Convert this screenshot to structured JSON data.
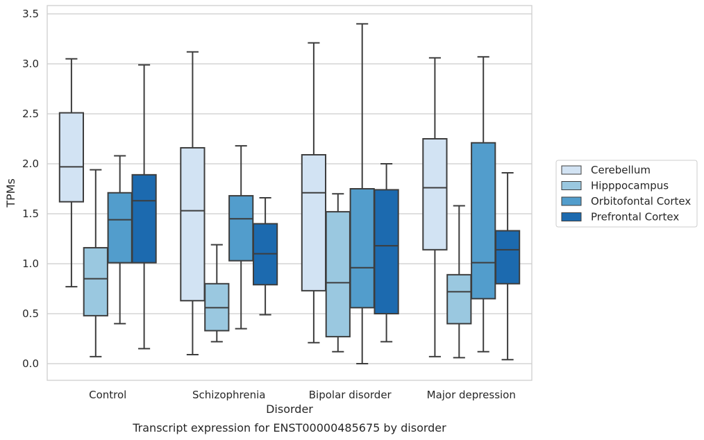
{
  "chart_data": {
    "type": "boxplot",
    "title": "",
    "caption": "Transcript expression for ENST00000485675 by disorder",
    "xlabel": "Disorder",
    "ylabel": "TPMs",
    "ylim": [
      -0.17,
      3.57
    ],
    "yticks": [
      "0.0",
      "0.5",
      "1.0",
      "1.5",
      "2.0",
      "2.5",
      "3.0",
      "3.5"
    ],
    "grid": "horizontal",
    "legend_position": "right",
    "categories": [
      "Control",
      "Schizophrenia",
      "Bipolar disorder",
      "Major depression"
    ],
    "series": [
      {
        "name": "Cerebellum",
        "color": "#d2e3f3",
        "boxes": [
          {
            "whislo": 0.77,
            "q1": 1.62,
            "med": 1.97,
            "q3": 2.51,
            "whishi": 3.05
          },
          {
            "whislo": 0.09,
            "q1": 0.63,
            "med": 1.53,
            "q3": 2.16,
            "whishi": 3.12
          },
          {
            "whislo": 0.21,
            "q1": 0.73,
            "med": 1.71,
            "q3": 2.09,
            "whishi": 3.21
          },
          {
            "whislo": 0.07,
            "q1": 1.14,
            "med": 1.76,
            "q3": 2.25,
            "whishi": 3.06
          }
        ]
      },
      {
        "name": "Hipppocampus",
        "color": "#9ac8e0",
        "boxes": [
          {
            "whislo": 0.07,
            "q1": 0.48,
            "med": 0.85,
            "q3": 1.16,
            "whishi": 1.94
          },
          {
            "whislo": 0.22,
            "q1": 0.33,
            "med": 0.56,
            "q3": 0.8,
            "whishi": 1.19
          },
          {
            "whislo": 0.12,
            "q1": 0.27,
            "med": 0.81,
            "q3": 1.52,
            "whishi": 1.7
          },
          {
            "whislo": 0.06,
            "q1": 0.4,
            "med": 0.72,
            "q3": 0.89,
            "whishi": 1.58
          }
        ]
      },
      {
        "name": "Orbitofontal Cortex",
        "color": "#529dcc",
        "boxes": [
          {
            "whislo": 0.4,
            "q1": 1.01,
            "med": 1.44,
            "q3": 1.71,
            "whishi": 2.08
          },
          {
            "whislo": 0.35,
            "q1": 1.03,
            "med": 1.45,
            "q3": 1.68,
            "whishi": 2.18
          },
          {
            "whislo": 0.0,
            "q1": 0.56,
            "med": 0.96,
            "q3": 1.75,
            "whishi": 3.4
          },
          {
            "whislo": 0.12,
            "q1": 0.65,
            "med": 1.01,
            "q3": 2.21,
            "whishi": 3.07
          }
        ]
      },
      {
        "name": "Prefrontal Cortex",
        "color": "#1c6aaf",
        "boxes": [
          {
            "whislo": 0.15,
            "q1": 1.01,
            "med": 1.63,
            "q3": 1.89,
            "whishi": 2.99
          },
          {
            "whislo": 0.49,
            "q1": 0.79,
            "med": 1.1,
            "q3": 1.4,
            "whishi": 1.66
          },
          {
            "whislo": 0.22,
            "q1": 0.5,
            "med": 1.18,
            "q3": 1.74,
            "whishi": 2.0
          },
          {
            "whislo": 0.04,
            "q1": 0.8,
            "med": 1.14,
            "q3": 1.33,
            "whishi": 1.91
          }
        ]
      }
    ]
  }
}
